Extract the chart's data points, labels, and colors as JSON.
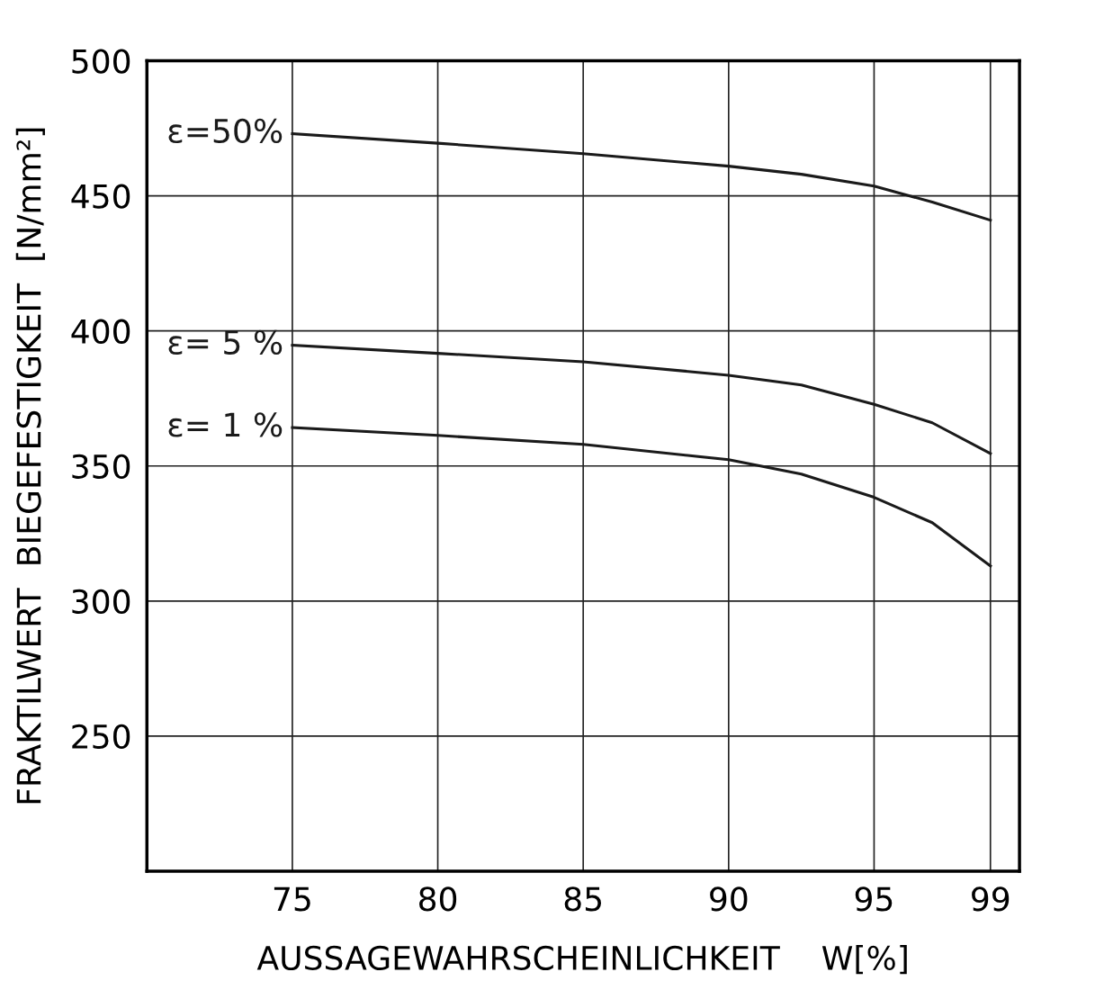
{
  "chart_data": {
    "type": "line",
    "xlabel": "AUSSAGEWAHRSCHEINLICHKEIT    W[%]",
    "ylabel": "FRAKTILWERT  BIEGEFESTIGKEIT  [N/mm²]",
    "x": [
      75,
      80,
      85,
      90,
      92.5,
      95,
      97,
      99
    ],
    "series": [
      {
        "name": "ε=50%",
        "color": "#1a1a1a",
        "values": [
          473,
          469.5,
          465.6,
          461,
          458,
          453.6,
          447.7,
          441
        ]
      },
      {
        "name": "ε= 5 %",
        "color": "#1a1a1a",
        "values": [
          394.7,
          391.7,
          388.6,
          383.6,
          380,
          372.8,
          366,
          354.6
        ]
      },
      {
        "name": "ε= 1 %",
        "color": "#1a1a1a",
        "values": [
          364.2,
          361.3,
          358,
          352.3,
          347,
          338.4,
          329,
          313
        ]
      }
    ],
    "xlim": [
      70,
      100
    ],
    "xticks": [
      75,
      80,
      85,
      90,
      95,
      99
    ],
    "ylim": [
      200,
      500
    ],
    "yticks": [
      250,
      300,
      350,
      400,
      450,
      500
    ],
    "grid": true,
    "legend": false,
    "marker": "none",
    "line_style": "solid"
  }
}
